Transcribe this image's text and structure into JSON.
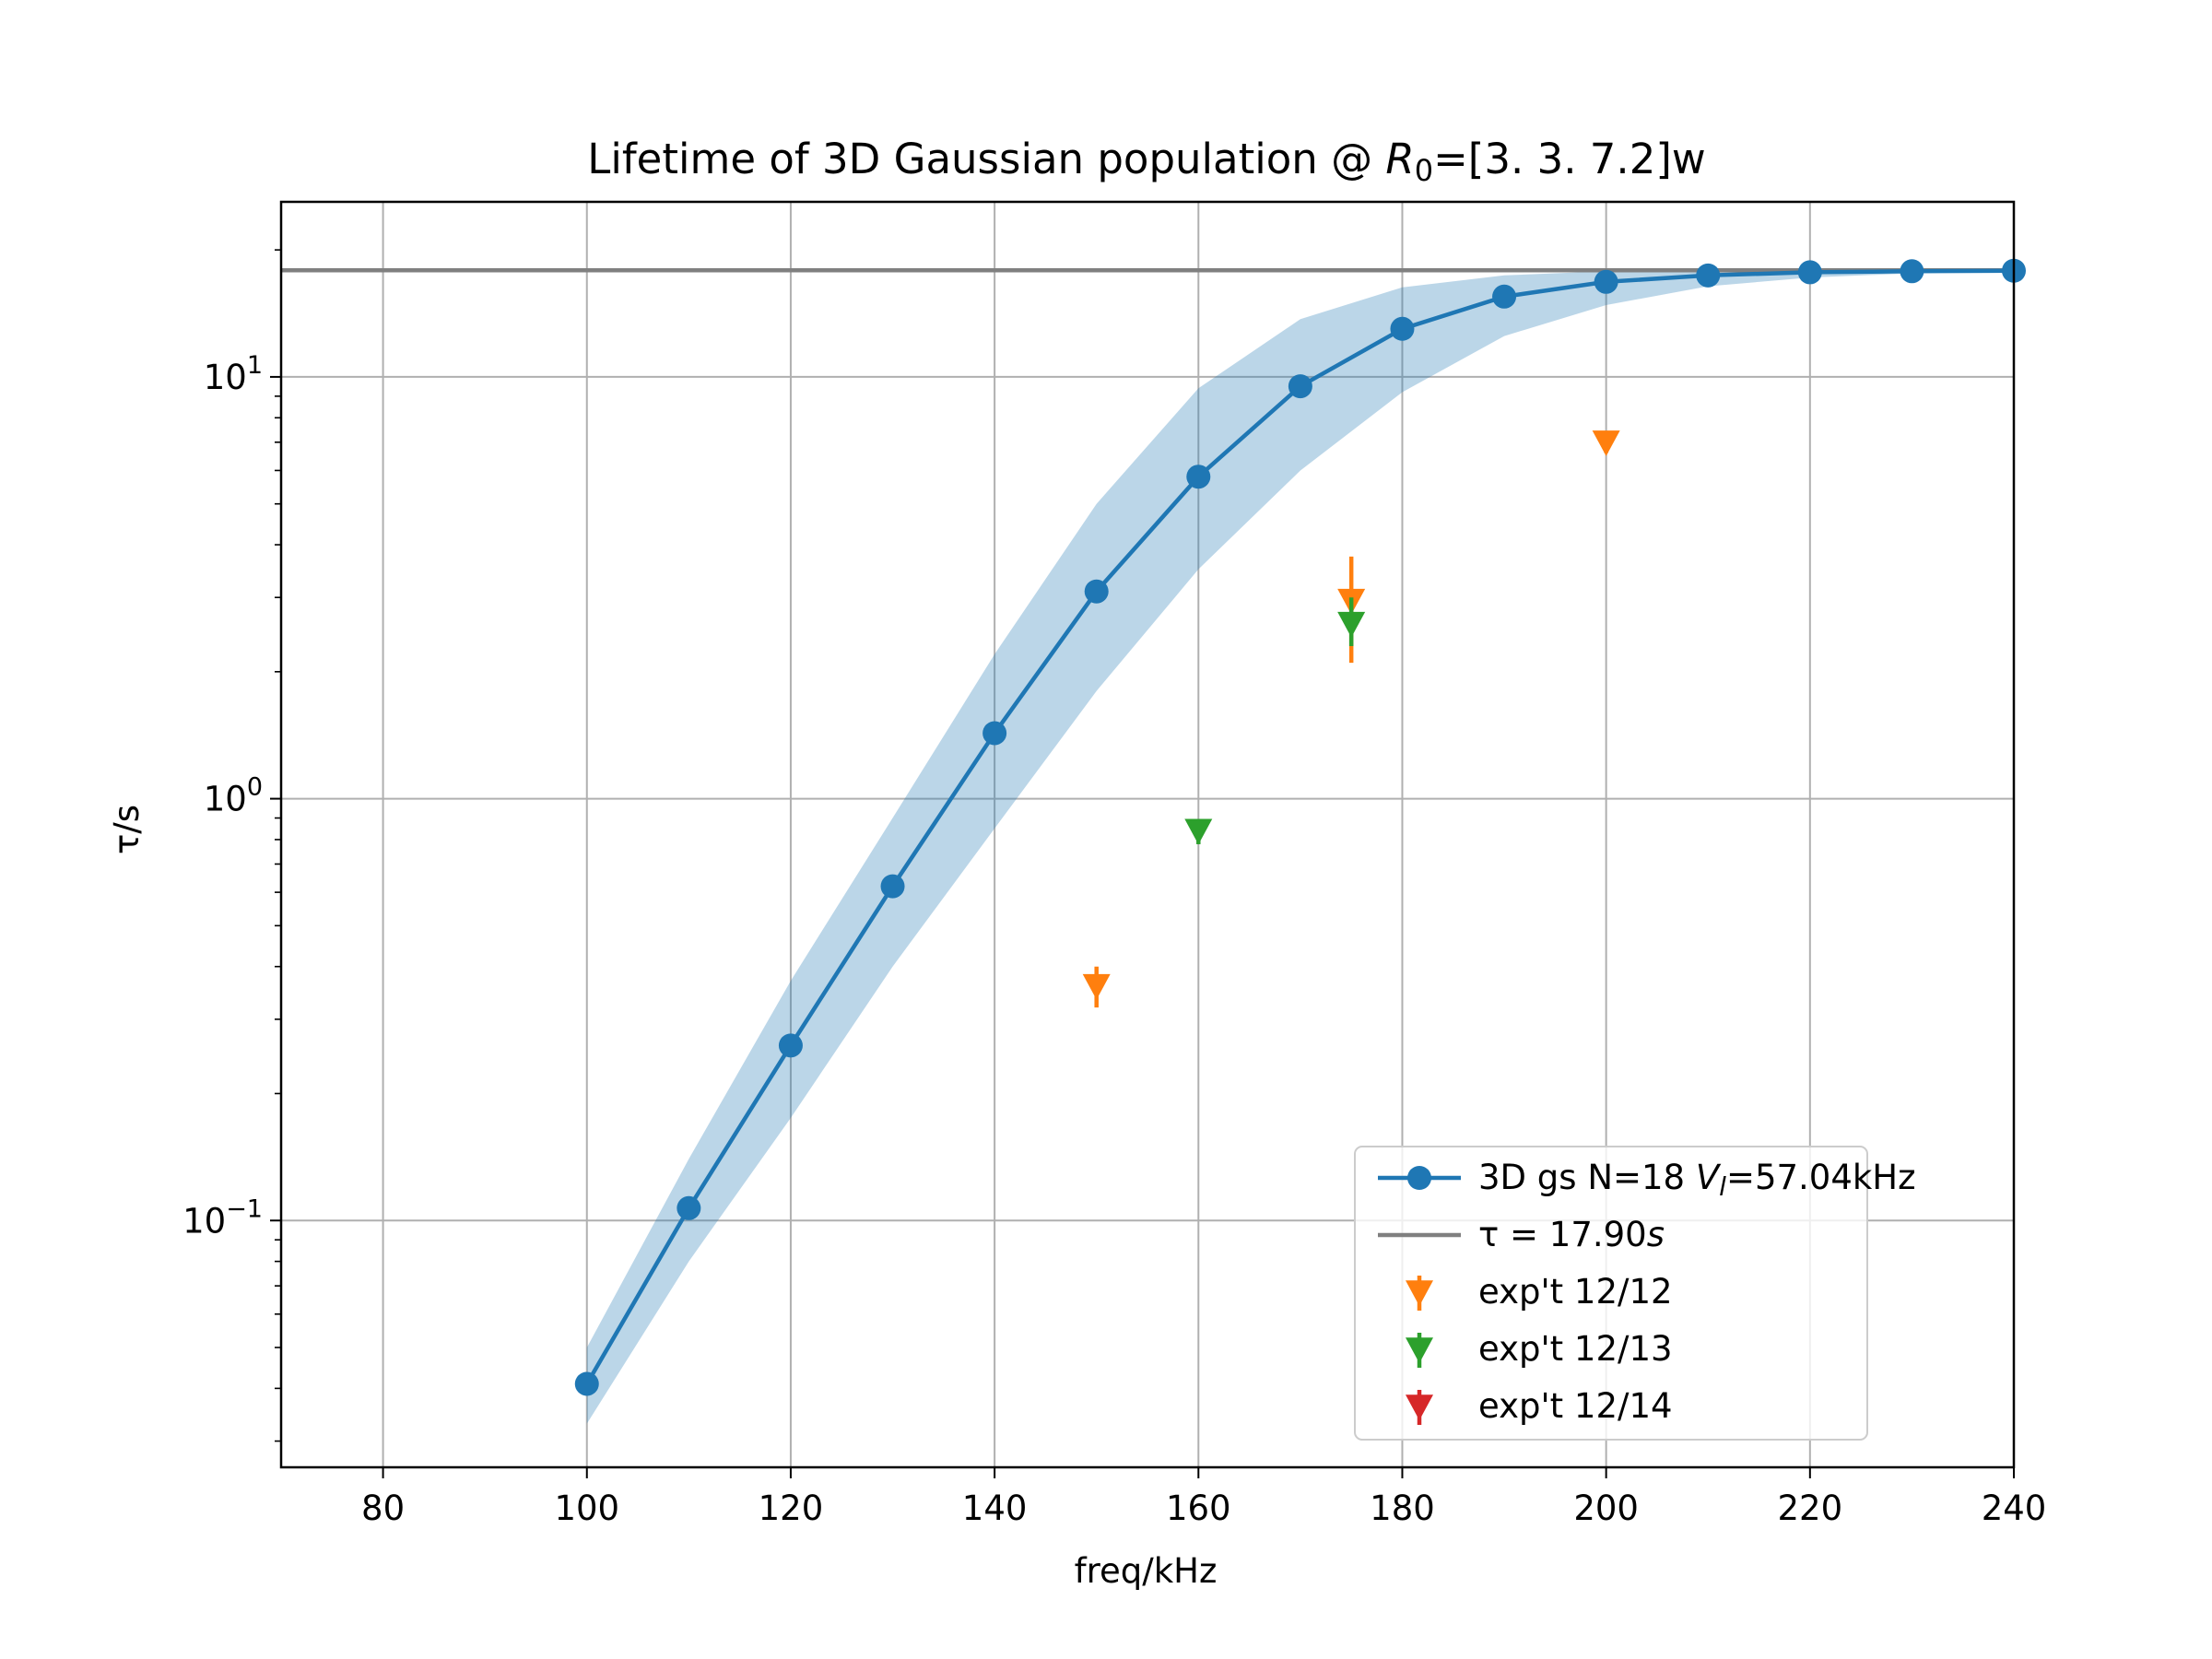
{
  "chart_data": {
    "type": "line",
    "title": "Lifetime of 3D Gaussian population @ ",
    "title_math": {
      "symbol": "R",
      "subscript": "0",
      "rest": "=[3.  3.  7.2]w"
    },
    "xlabel": "freq/kHz",
    "ylabel": "τ/s",
    "xlim": [
      70,
      240
    ],
    "ylim": [
      0.026,
      26
    ],
    "yscale": "log",
    "grid": true,
    "legend_position": "lower-right",
    "x_ticks": [
      "80",
      "100",
      "120",
      "140",
      "160",
      "180",
      "200",
      "220",
      "240"
    ],
    "y_ticks": [
      {
        "value": 0.1,
        "base": "10",
        "exp": "−1"
      },
      {
        "value": 1,
        "base": "10",
        "exp": "0"
      },
      {
        "value": 10,
        "base": "10",
        "exp": "1"
      }
    ],
    "model": {
      "name_prefix": "3D gs N=18 ",
      "name_var": "V",
      "name_sub": "l",
      "name_suffix": "=57.04kHz",
      "color": "#1f77b4",
      "band_color": "#1f77b4",
      "x": [
        100,
        110,
        120,
        130,
        140,
        150,
        160,
        170,
        180,
        190,
        200,
        210,
        220,
        230,
        240
      ],
      "y": [
        0.041,
        0.107,
        0.26,
        0.62,
        1.43,
        3.1,
        5.8,
        9.5,
        13.0,
        15.5,
        16.8,
        17.4,
        17.7,
        17.8,
        17.85
      ],
      "band_low": [
        0.033,
        0.08,
        0.175,
        0.4,
        0.85,
        1.8,
        3.5,
        6.0,
        9.2,
        12.5,
        14.8,
        16.4,
        17.2,
        17.6,
        17.8
      ],
      "band_high": [
        0.05,
        0.14,
        0.37,
        0.9,
        2.2,
        5.0,
        9.4,
        13.7,
        16.3,
        17.4,
        17.8,
        17.9,
        17.95,
        17.95,
        17.95
      ]
    },
    "reference_line": {
      "name_prefix": "τ = 17.90",
      "name_unit": "s",
      "value": 17.9,
      "color": "#808080"
    },
    "experiments": [
      {
        "name": "exp't 12/12",
        "color": "#ff7f0e",
        "points": [
          {
            "x": 150,
            "y": 0.36,
            "err_low": 0.32,
            "err_high": 0.4
          },
          {
            "x": 175,
            "y": 2.95,
            "err_low": 2.1,
            "err_high": 3.75
          },
          {
            "x": 200,
            "y": 7.0,
            "err_low": 6.6,
            "err_high": 7.4
          }
        ]
      },
      {
        "name": "exp't 12/13",
        "color": "#2ca02c",
        "points": [
          {
            "x": 160,
            "y": 0.84,
            "err_low": 0.78,
            "err_high": 0.88
          },
          {
            "x": 175,
            "y": 2.6,
            "err_low": 2.3,
            "err_high": 3.0
          }
        ]
      },
      {
        "name": "exp't 12/14",
        "color": "#d62728",
        "points": []
      }
    ]
  }
}
